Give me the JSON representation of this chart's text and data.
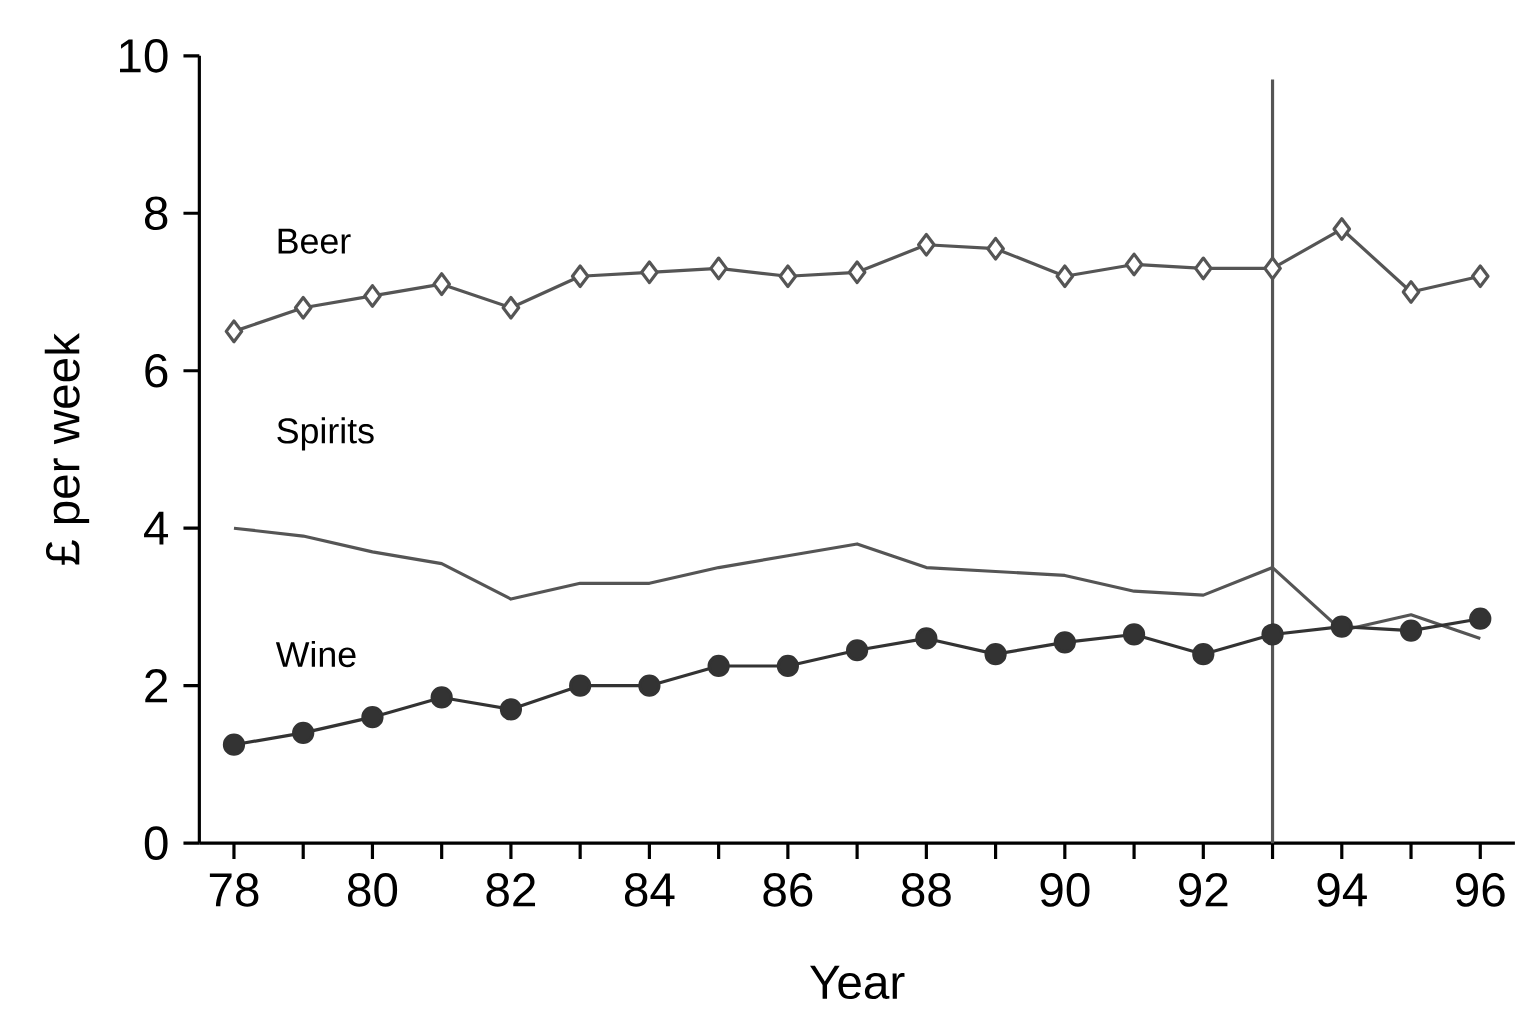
{
  "chart_data": {
    "type": "line",
    "xlabel": "Year",
    "ylabel": "£ per week",
    "x": [
      78,
      79,
      80,
      81,
      82,
      83,
      84,
      85,
      86,
      87,
      88,
      89,
      90,
      91,
      92,
      93,
      94,
      95,
      96
    ],
    "series": [
      {
        "name": "Beer",
        "color": "#555555",
        "marker": "diamond",
        "values": [
          6.5,
          6.8,
          6.95,
          7.1,
          6.8,
          7.2,
          7.25,
          7.3,
          7.2,
          7.25,
          7.6,
          7.55,
          7.2,
          7.35,
          7.3,
          7.3,
          7.8,
          7.0,
          7.2
        ]
      },
      {
        "name": "Spirits",
        "color": "#555555",
        "marker": "none",
        "values": [
          4.0,
          3.9,
          3.7,
          3.55,
          3.1,
          3.3,
          3.3,
          3.5,
          3.65,
          3.8,
          3.5,
          3.45,
          3.4,
          3.2,
          3.15,
          3.5,
          2.7,
          2.9,
          2.6
        ]
      },
      {
        "name": "Wine",
        "color": "#333333",
        "marker": "circle",
        "values": [
          1.25,
          1.4,
          1.6,
          1.85,
          1.7,
          2.0,
          2.0,
          2.25,
          2.25,
          2.45,
          2.6,
          2.4,
          2.55,
          2.65,
          2.4,
          2.65,
          2.75,
          2.7,
          2.85
        ]
      }
    ],
    "xlim": [
      77.5,
      96.5
    ],
    "xticks": [
      78,
      80,
      82,
      84,
      86,
      88,
      90,
      92,
      94,
      96
    ],
    "ylim": [
      0,
      10
    ],
    "yticks": [
      0,
      2,
      4,
      6,
      8,
      10
    ],
    "ref_lines": [
      {
        "axis": "x",
        "value": 93,
        "color": "#555555"
      }
    ],
    "grid": false,
    "legend": false
  }
}
